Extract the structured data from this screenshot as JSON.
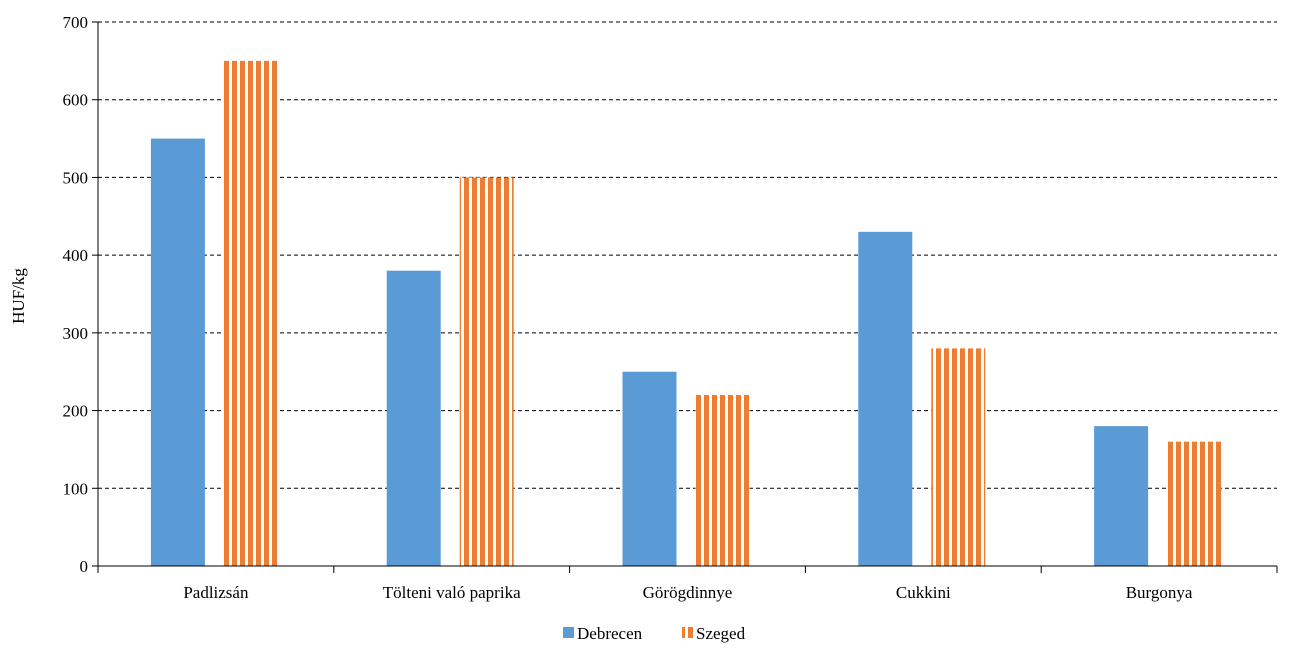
{
  "chart_data": {
    "type": "bar",
    "title": "",
    "xlabel": "",
    "ylabel": "HUF/kg",
    "ylim": [
      0,
      700
    ],
    "yticks": [
      0,
      100,
      200,
      300,
      400,
      500,
      600,
      700
    ],
    "grid": true,
    "legend_position": "bottom",
    "categories": [
      "Padlizsán",
      "Tölteni való paprika",
      "Görögdinnye",
      "Cukkini",
      "Burgonya"
    ],
    "series": [
      {
        "name": "Debrecen",
        "values": [
          550,
          380,
          250,
          430,
          180
        ],
        "color": "#5b9bd5",
        "pattern": "solid"
      },
      {
        "name": "Szeged",
        "values": [
          650,
          500,
          220,
          280,
          160
        ],
        "color": "#ed7d31",
        "pattern": "vertical-stripes"
      }
    ]
  }
}
